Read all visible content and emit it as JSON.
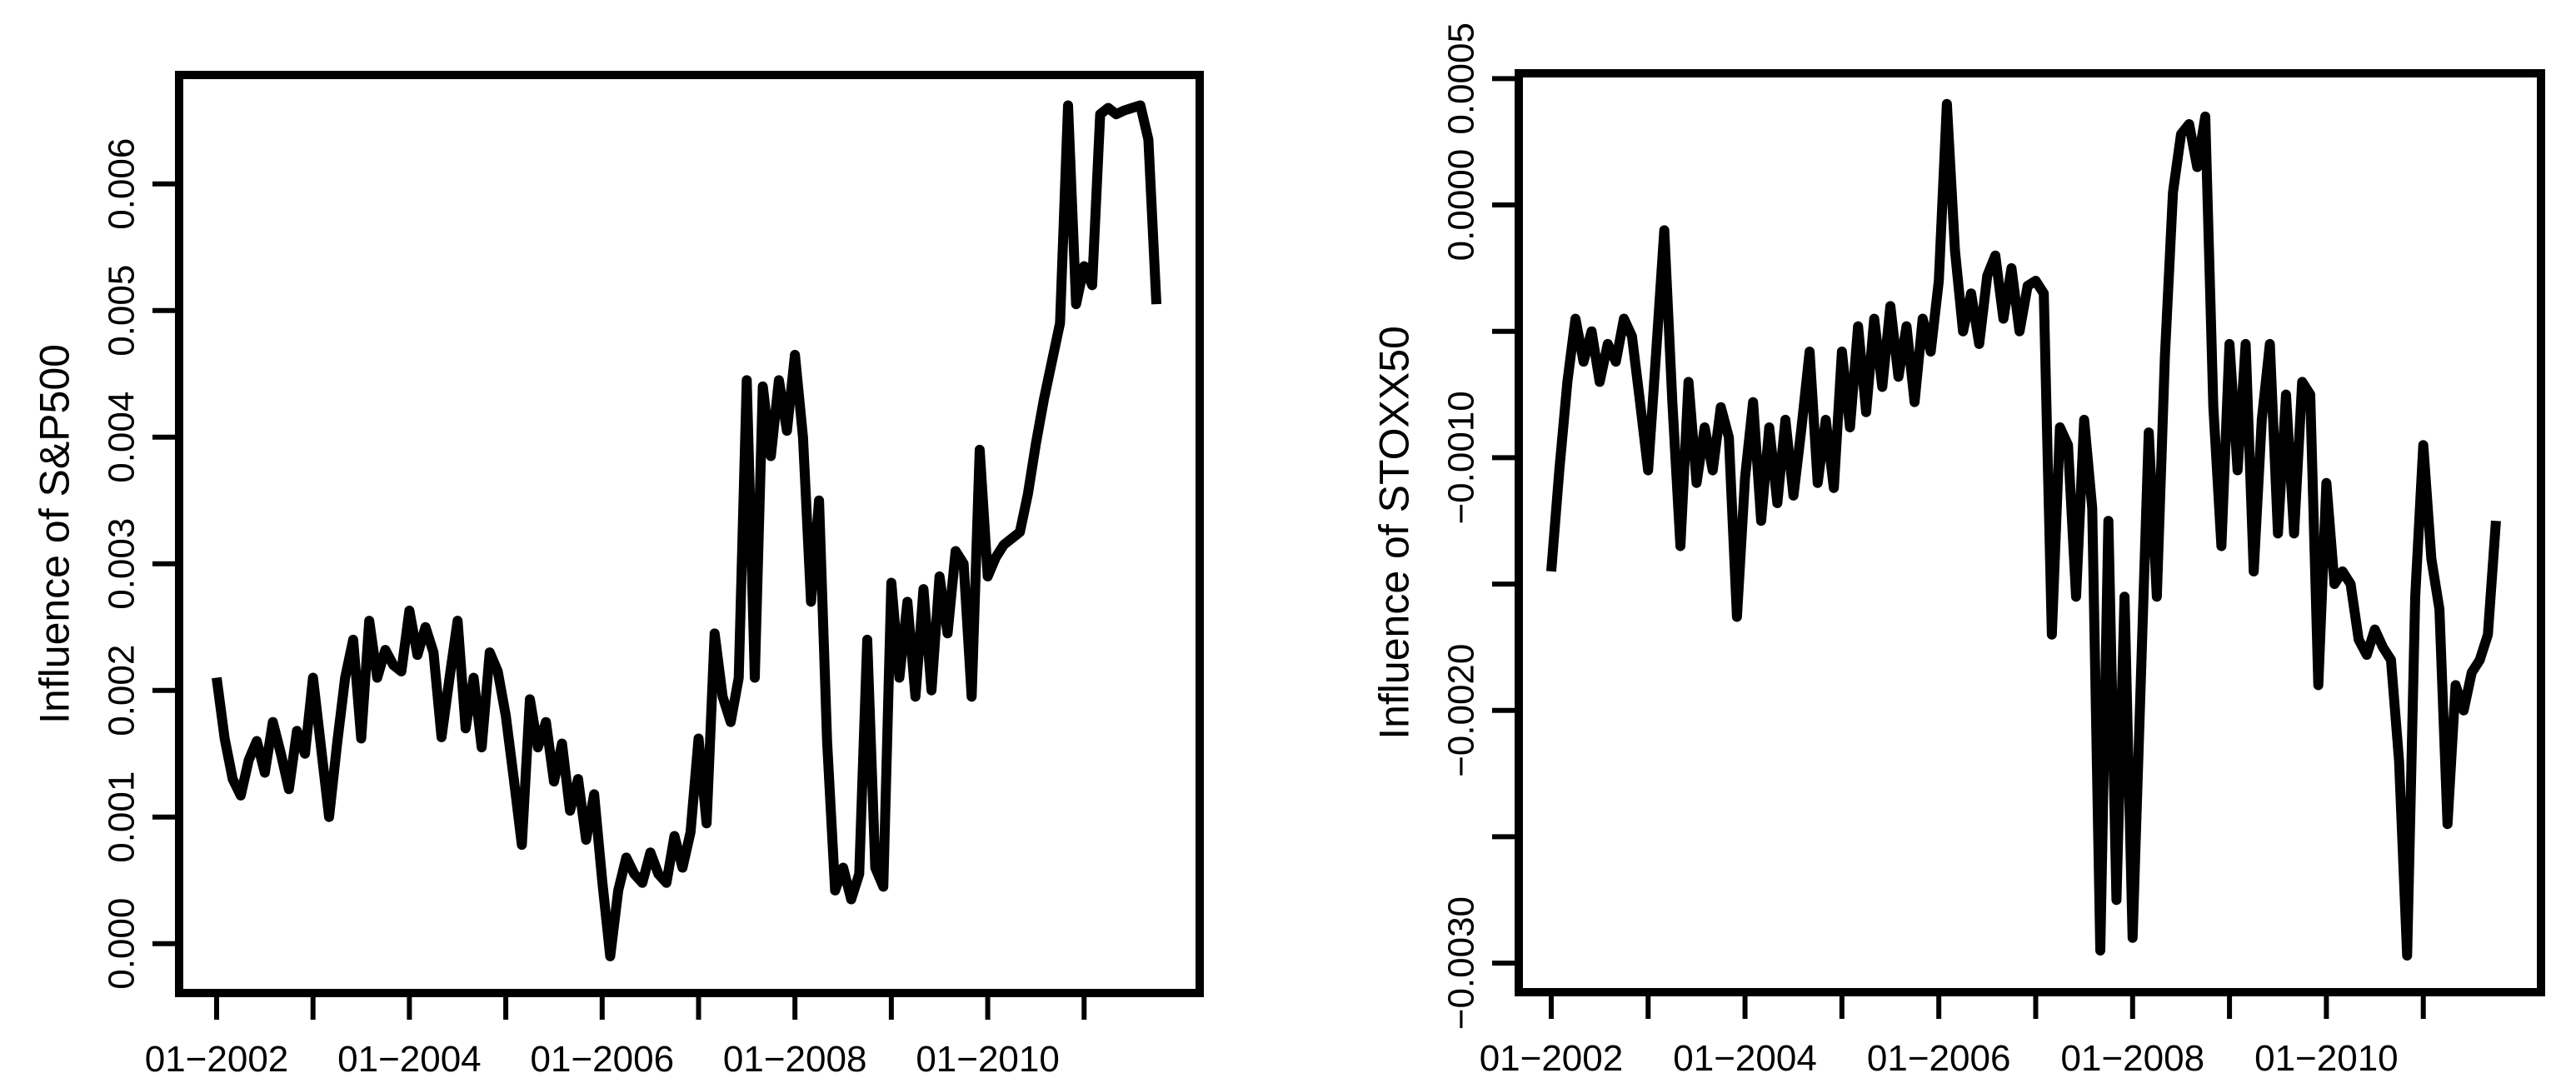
{
  "page": {
    "background_color": "#ffffff",
    "foreground_color": "#000000"
  },
  "chart_data": [
    {
      "id": "sp500",
      "type": "line",
      "title": "",
      "xlabel": "",
      "ylabel": "Influence of S&P500",
      "line_color": "#000000",
      "grid": false,
      "legend": null,
      "x_start_month": "2002-01",
      "x_end_month": "2011-10",
      "x_frequency": "monthly",
      "usr": {
        "xlim": [
          2001.611,
          2012.199
        ],
        "ylim": [
          -0.00039,
          0.00686
        ]
      },
      "yticks": [
        {
          "value": 0.0,
          "label": "0.000"
        },
        {
          "value": 0.001,
          "label": "0.001"
        },
        {
          "value": 0.002,
          "label": "0.002"
        },
        {
          "value": 0.003,
          "label": "0.003"
        },
        {
          "value": 0.004,
          "label": "0.004"
        },
        {
          "value": 0.005,
          "label": "0.005"
        },
        {
          "value": 0.006,
          "label": "0.006"
        }
      ],
      "xticks": [
        {
          "year": 2002,
          "label": "01−2002"
        },
        {
          "year": 2003,
          "label": ""
        },
        {
          "year": 2004,
          "label": "01−2004"
        },
        {
          "year": 2005,
          "label": ""
        },
        {
          "year": 2006,
          "label": "01−2006"
        },
        {
          "year": 2007,
          "label": ""
        },
        {
          "year": 2008,
          "label": "01−2008"
        },
        {
          "year": 2009,
          "label": ""
        },
        {
          "year": 2010,
          "label": "01−2010"
        },
        {
          "year": 2011,
          "label": ""
        }
      ],
      "values": [
        0.0021,
        0.00162,
        0.0013,
        0.00117,
        0.00145,
        0.0016,
        0.00135,
        0.00175,
        0.0015,
        0.00122,
        0.00168,
        0.0015,
        0.0021,
        0.00155,
        0.001,
        0.00158,
        0.0021,
        0.0024,
        0.00162,
        0.00255,
        0.0021,
        0.00232,
        0.0022,
        0.00215,
        0.00263,
        0.00228,
        0.0025,
        0.0023,
        0.00163,
        0.0021,
        0.00255,
        0.0017,
        0.0021,
        0.00155,
        0.0023,
        0.00215,
        0.0018,
        0.0013,
        0.00078,
        0.00193,
        0.00155,
        0.00175,
        0.00128,
        0.00158,
        0.00105,
        0.0013,
        0.00082,
        0.00118,
        0.0005,
        -0.0001,
        0.00042,
        0.00068,
        0.00055,
        0.00048,
        0.00072,
        0.00055,
        0.00048,
        0.00085,
        0.0006,
        0.00088,
        0.00162,
        0.00095,
        0.00245,
        0.00195,
        0.00175,
        0.0021,
        0.00445,
        0.0021,
        0.0044,
        0.00385,
        0.00445,
        0.00405,
        0.00465,
        0.004,
        0.0027,
        0.0035,
        0.0016,
        0.00042,
        0.0006,
        0.00035,
        0.00055,
        0.0024,
        0.0006,
        0.00045,
        0.00285,
        0.0021,
        0.0027,
        0.00195,
        0.0028,
        0.002,
        0.0029,
        0.00245,
        0.0031,
        0.003,
        0.00195,
        0.0039,
        0.0029,
        0.00305,
        0.00315,
        0.0032,
        0.00325,
        0.00355,
        0.00395,
        0.0043,
        0.0046,
        0.0049,
        0.00662,
        0.00505,
        0.00535,
        0.0052,
        0.00655,
        0.0066,
        0.00655,
        0.00658,
        0.0066,
        0.00662,
        0.00635,
        0.00505
      ]
    },
    {
      "id": "stoxx50",
      "type": "line",
      "title": "",
      "xlabel": "",
      "ylabel": "Influence of STOXX50",
      "line_color": "#000000",
      "grid": false,
      "legend": null,
      "x_start_month": "2002-01",
      "x_end_month": "2011-10",
      "x_frequency": "monthly",
      "usr": {
        "xlim": [
          2001.665,
          2012.215
        ],
        "ylim": [
          -0.003115,
          0.000521
        ]
      },
      "yticks": [
        {
          "value": -0.003,
          "label": "−0.0030"
        },
        {
          "value": -0.0025,
          "label": ""
        },
        {
          "value": -0.002,
          "label": "−0.0020"
        },
        {
          "value": -0.0015,
          "label": ""
        },
        {
          "value": -0.001,
          "label": "−0.0010"
        },
        {
          "value": -0.0005,
          "label": ""
        },
        {
          "value": 0.0,
          "label": "0.0000"
        },
        {
          "value": 0.0005,
          "label": "0.0005"
        }
      ],
      "xticks": [
        {
          "year": 2002,
          "label": "01−2002"
        },
        {
          "year": 2003,
          "label": ""
        },
        {
          "year": 2004,
          "label": "01−2004"
        },
        {
          "year": 2005,
          "label": ""
        },
        {
          "year": 2006,
          "label": "01−2006"
        },
        {
          "year": 2007,
          "label": ""
        },
        {
          "year": 2008,
          "label": "01−2008"
        },
        {
          "year": 2009,
          "label": ""
        },
        {
          "year": 2010,
          "label": "01−2010"
        },
        {
          "year": 2011,
          "label": ""
        }
      ],
      "values": [
        -0.00145,
        -0.00105,
        -0.0007,
        -0.00045,
        -0.00062,
        -0.0005,
        -0.0007,
        -0.00055,
        -0.00062,
        -0.00045,
        -0.00052,
        -0.00078,
        -0.00105,
        -0.00058,
        -0.0001,
        -0.00078,
        -0.00135,
        -0.0007,
        -0.0011,
        -0.00088,
        -0.00105,
        -0.0008,
        -0.00092,
        -0.00163,
        -0.00108,
        -0.00078,
        -0.00125,
        -0.00088,
        -0.00118,
        -0.00085,
        -0.00115,
        -0.00088,
        -0.00058,
        -0.0011,
        -0.00085,
        -0.00112,
        -0.00058,
        -0.00088,
        -0.00048,
        -0.00082,
        -0.00045,
        -0.00072,
        -0.0004,
        -0.00068,
        -0.00048,
        -0.00078,
        -0.00045,
        -0.00058,
        -0.0003,
        0.0004,
        -0.00018,
        -0.0005,
        -0.00035,
        -0.00055,
        -0.00028,
        -0.0002,
        -0.00045,
        -0.00025,
        -0.0005,
        -0.00032,
        -0.0003,
        -0.00035,
        -0.0017,
        -0.00088,
        -0.00095,
        -0.00155,
        -0.00085,
        -0.0012,
        -0.00295,
        -0.00125,
        -0.00275,
        -0.00155,
        -0.0029,
        -0.0019,
        -0.0009,
        -0.00155,
        -0.0006,
        5e-05,
        0.00028,
        0.00032,
        0.00015,
        0.00035,
        -0.0008,
        -0.00135,
        -0.00055,
        -0.00105,
        -0.00055,
        -0.00145,
        -0.00085,
        -0.00055,
        -0.0013,
        -0.00075,
        -0.0013,
        -0.0007,
        -0.00075,
        -0.0019,
        -0.0011,
        -0.0015,
        -0.00145,
        -0.0015,
        -0.00172,
        -0.00178,
        -0.00168,
        -0.00175,
        -0.0018,
        -0.0022,
        -0.00297,
        -0.00155,
        -0.00095,
        -0.0014,
        -0.0016,
        -0.00245,
        -0.0019,
        -0.002,
        -0.00185,
        -0.0018,
        -0.0017,
        -0.00125
      ]
    }
  ]
}
